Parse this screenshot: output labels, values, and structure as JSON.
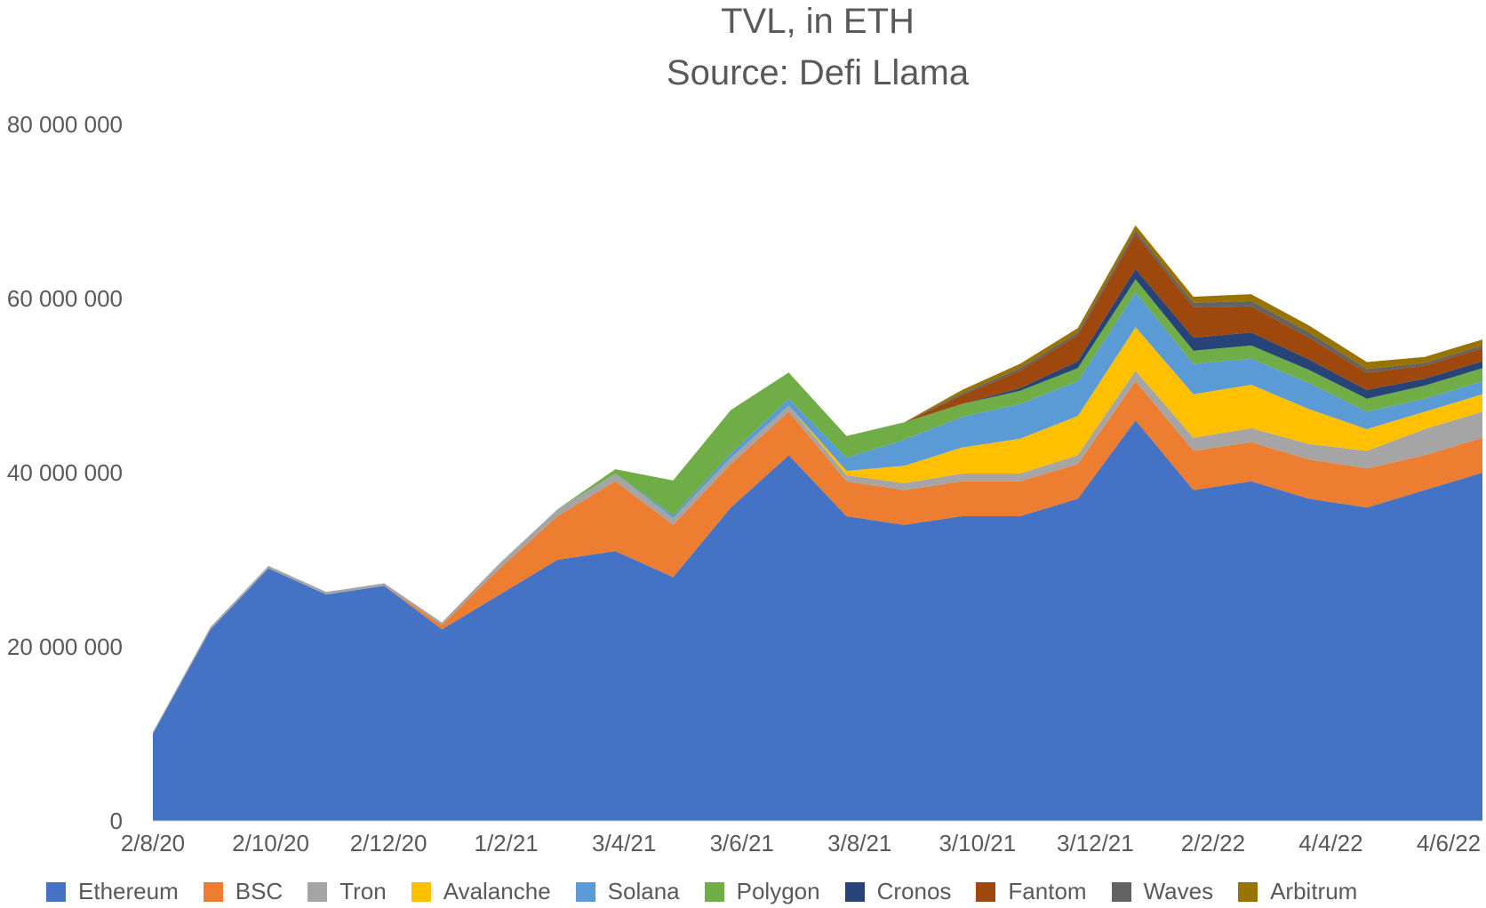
{
  "chart_data": {
    "type": "area",
    "stacked": true,
    "title": "TVL, in ETH",
    "subtitle": "Source: Defi Llama",
    "xlabel": "",
    "ylabel": "",
    "ylim": [
      0,
      80000000
    ],
    "y_ticks": [
      0,
      20000000,
      40000000,
      60000000,
      80000000
    ],
    "y_tick_labels": [
      "0",
      "20 000 000",
      "40 000 000",
      "60 000 000",
      "80 000 000"
    ],
    "x_tick_labels": [
      "2/8/20",
      "2/10/20",
      "2/12/20",
      "1/2/21",
      "3/4/21",
      "3/6/21",
      "3/8/21",
      "3/10/21",
      "3/12/21",
      "2/2/22",
      "4/4/22",
      "4/6/22"
    ],
    "x": [
      "2020-08",
      "2020-09",
      "2020-10",
      "2020-11",
      "2020-12",
      "2021-01",
      "2021-02",
      "2021-03",
      "2021-04",
      "2021-05",
      "2021-06",
      "2021-07",
      "2021-08",
      "2021-09",
      "2021-10",
      "2021-11",
      "2021-12",
      "2022-01",
      "2022-02",
      "2022-03",
      "2022-04",
      "2022-05",
      "2022-06",
      "2022-07"
    ],
    "series": [
      {
        "name": "Ethereum",
        "color": "#4472C4",
        "values": [
          10000000,
          22000000,
          29000000,
          26000000,
          27000000,
          22000000,
          26000000,
          30000000,
          31000000,
          28000000,
          36000000,
          42000000,
          35000000,
          34000000,
          35000000,
          35000000,
          37000000,
          46000000,
          38000000,
          39000000,
          37000000,
          36000000,
          38000000,
          40000000
        ]
      },
      {
        "name": "BSC",
        "color": "#ED7D31",
        "values": [
          0,
          0,
          0,
          0,
          0,
          500000,
          3000000,
          5000000,
          8000000,
          6000000,
          5000000,
          5000000,
          4000000,
          4000000,
          4000000,
          4000000,
          4000000,
          4500000,
          4500000,
          4500000,
          4500000,
          4500000,
          4000000,
          4000000
        ]
      },
      {
        "name": "Tron",
        "color": "#A5A5A5",
        "values": [
          200000,
          300000,
          300000,
          300000,
          300000,
          300000,
          600000,
          800000,
          900000,
          800000,
          700000,
          700000,
          700000,
          800000,
          900000,
          900000,
          1000000,
          1200000,
          1500000,
          1600000,
          1800000,
          2000000,
          3000000,
          3000000
        ]
      },
      {
        "name": "Avalanche",
        "color": "#FFC000",
        "values": [
          0,
          0,
          0,
          0,
          0,
          0,
          0,
          0,
          0,
          0,
          0,
          0,
          500000,
          2000000,
          3000000,
          4000000,
          4500000,
          5000000,
          5000000,
          5000000,
          4000000,
          2500000,
          2000000,
          2000000
        ]
      },
      {
        "name": "Solana",
        "color": "#5B9BD5",
        "values": [
          0,
          0,
          0,
          0,
          0,
          0,
          0,
          0,
          0,
          300000,
          500000,
          800000,
          1500000,
          3000000,
          3500000,
          4000000,
          4000000,
          4000000,
          3500000,
          3000000,
          3000000,
          2000000,
          1500000,
          1500000
        ]
      },
      {
        "name": "Polygon",
        "color": "#70AD47",
        "values": [
          0,
          0,
          0,
          0,
          0,
          0,
          0,
          0,
          500000,
          4000000,
          5000000,
          3000000,
          2500000,
          2000000,
          1500000,
          1500000,
          1500000,
          1500000,
          1500000,
          1500000,
          1500000,
          1500000,
          1500000,
          1500000
        ]
      },
      {
        "name": "Cronos",
        "color": "#264478",
        "values": [
          0,
          0,
          0,
          0,
          0,
          0,
          0,
          0,
          0,
          0,
          0,
          0,
          0,
          0,
          0,
          300000,
          800000,
          1200000,
          1500000,
          1500000,
          1200000,
          1000000,
          800000,
          800000
        ]
      },
      {
        "name": "Fantom",
        "color": "#9E480E",
        "values": [
          0,
          0,
          0,
          0,
          0,
          0,
          0,
          0,
          0,
          0,
          0,
          0,
          0,
          0,
          1000000,
          2000000,
          3000000,
          4000000,
          3500000,
          3000000,
          2500000,
          2000000,
          1500000,
          1500000
        ]
      },
      {
        "name": "Waves",
        "color": "#636363",
        "values": [
          0,
          0,
          0,
          0,
          0,
          0,
          0,
          0,
          0,
          0,
          0,
          0,
          0,
          0,
          200000,
          300000,
          300000,
          400000,
          500000,
          600000,
          600000,
          400000,
          300000,
          300000
        ]
      },
      {
        "name": "Arbitrum",
        "color": "#997300",
        "values": [
          0,
          0,
          0,
          0,
          0,
          0,
          0,
          0,
          0,
          0,
          0,
          0,
          0,
          0,
          400000,
          500000,
          500000,
          600000,
          700000,
          800000,
          800000,
          800000,
          700000,
          700000
        ]
      }
    ],
    "legend_position": "bottom"
  }
}
